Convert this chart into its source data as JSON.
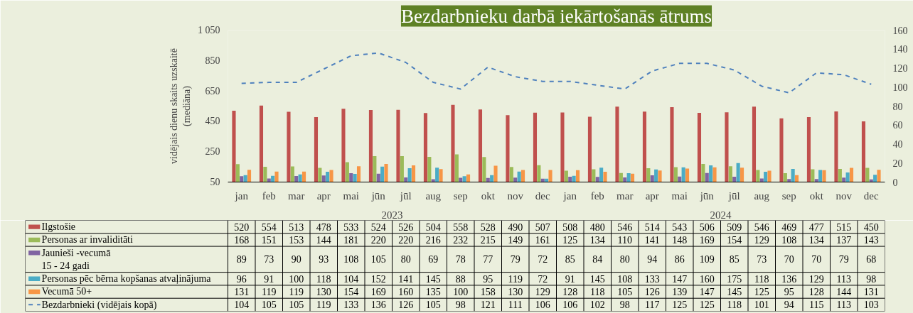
{
  "chart_data": {
    "type": "bar",
    "title": "Bezdarbnieku darbā iekārtošanās ātrums",
    "ylabel": "vidējais dienu skaits uzskaitē\n(mediāna)",
    "categories": [
      "jan",
      "feb",
      "mar",
      "apr",
      "mai",
      "jūn",
      "jūl",
      "aug",
      "sep",
      "okt",
      "nov",
      "dec",
      "jan",
      "feb",
      "mar",
      "apr",
      "mai",
      "jūn",
      "jūl",
      "aug",
      "sep",
      "okt",
      "nov",
      "dec"
    ],
    "annotations": [
      "2023",
      "2024"
    ],
    "series": [
      {
        "name": "Ilgstošie",
        "color": "#c0504d",
        "values": [
          520,
          554,
          513,
          478,
          533,
          524,
          526,
          504,
          558,
          528,
          490,
          507,
          508,
          480,
          546,
          514,
          543,
          506,
          509,
          546,
          469,
          477,
          515,
          450
        ]
      },
      {
        "name": "Personas ar invaliditāti",
        "color": "#9bbb59",
        "values": [
          168,
          151,
          153,
          144,
          181,
          220,
          220,
          216,
          232,
          215,
          149,
          161,
          125,
          134,
          110,
          141,
          148,
          169,
          154,
          129,
          108,
          134,
          137,
          143
        ]
      },
      {
        "name": "Jaunieši -vecumā\n15 - 24 gadi",
        "color": "#8064a2",
        "values": [
          89,
          73,
          90,
          93,
          108,
          105,
          80,
          69,
          78,
          77,
          79,
          72,
          85,
          84,
          80,
          94,
          86,
          109,
          85,
          73,
          70,
          70,
          79,
          68
        ]
      },
      {
        "name": "Personas pēc bērna kopšanas atvaļinājuma",
        "color": "#4bacc6",
        "values": [
          96,
          91,
          100,
          118,
          104,
          152,
          141,
          145,
          88,
          95,
          119,
          72,
          91,
          145,
          108,
          133,
          147,
          160,
          175,
          118,
          136,
          129,
          113,
          98
        ]
      },
      {
        "name": "Vecumā 50+",
        "color": "#f79646",
        "values": [
          131,
          119,
          119,
          130,
          154,
          169,
          160,
          135,
          100,
          158,
          130,
          129,
          128,
          118,
          105,
          126,
          139,
          147,
          145,
          125,
          95,
          128,
          144,
          131
        ]
      },
      {
        "name": "Bezdarbnieki (vidējais kopā)",
        "type": "line",
        "axis": "y2",
        "line_style": "dashed",
        "color": "#4f81bd",
        "values": [
          104,
          105,
          105,
          119,
          133,
          136,
          126,
          105,
          98,
          121,
          111,
          106,
          106,
          102,
          98,
          117,
          125,
          125,
          118,
          101,
          94,
          115,
          113,
          103
        ]
      }
    ],
    "ylim": [
      50,
      1050
    ],
    "yticks": [
      50,
      250,
      450,
      650,
      850,
      {
        "value": 1050,
        "label": "1 050"
      }
    ],
    "y2lim": [
      0,
      160
    ],
    "y2ticks": [
      0,
      20,
      40,
      60,
      80,
      100,
      120,
      140,
      160
    ],
    "grid": false,
    "legend": "bottom",
    "data_labels": true,
    "marker": "none"
  }
}
